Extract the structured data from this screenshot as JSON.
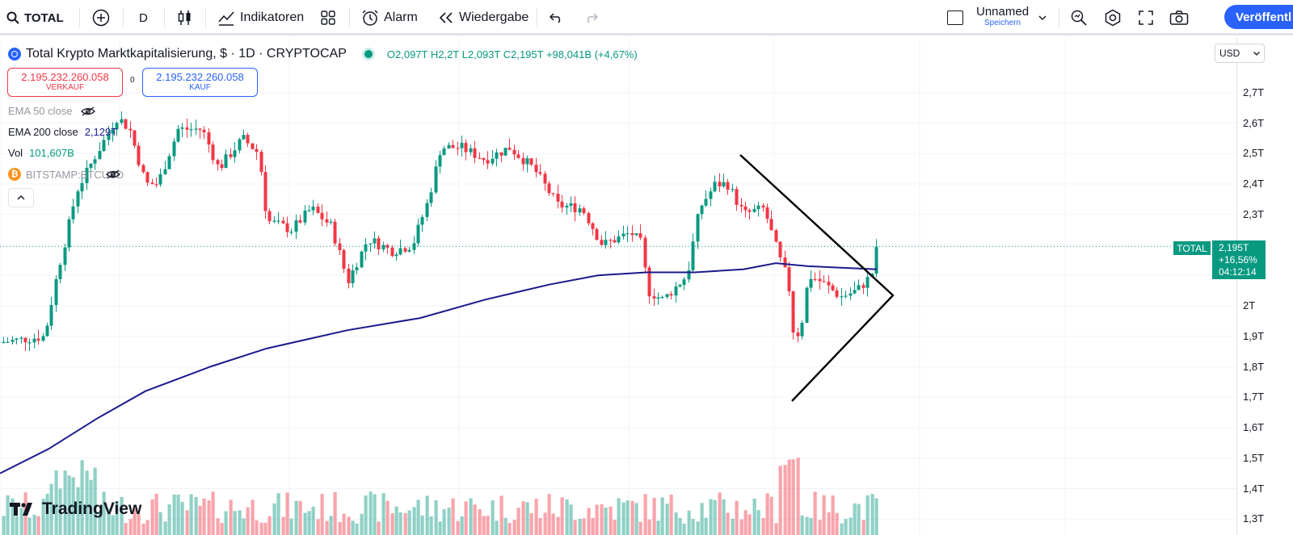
{
  "toolbar": {
    "symbol": "TOTAL",
    "interval": "D",
    "indicators_label": "Indikatoren",
    "alarm_label": "Alarm",
    "replay_label": "Wiedergabe",
    "layout_name": "Unnamed",
    "layout_sub": "Speichern",
    "publish_label": "Veröffentl"
  },
  "legend": {
    "title": "Total Krypto Marktkapitalisierung, $ · 1D · CRYPTOCAP",
    "ohlc": "O2,097T  H2,2T  L2,093T  C2,195T  +98,041B (+4,67%)",
    "zero": "0",
    "sell_price": "2.195.232.260.058",
    "sell_label": "VERKAUF",
    "buy_price": "2.195.232.260.058",
    "buy_label": "KAUF",
    "indicators": [
      {
        "label": "EMA 50 close",
        "value": ""
      },
      {
        "label": "EMA 200 close",
        "value": "2,129T"
      },
      {
        "label": "Vol",
        "value": "101,607B"
      },
      {
        "label": "BITSTAMP:BTCUSD",
        "value": ""
      }
    ]
  },
  "axis": {
    "currency": "USD",
    "ticks": [
      "2,7T",
      "2,6T",
      "2,5T",
      "2,4T",
      "2,3T",
      "2T",
      "1,9T",
      "1,8T",
      "1,7T",
      "1,6T",
      "1,5T",
      "1,4T",
      "1,3T"
    ]
  },
  "last_price": {
    "symbol": "TOTAL",
    "value": "2,195T",
    "change": "+16,56%",
    "countdown": "04:12:14"
  },
  "brand": "TradingView",
  "colors": {
    "up": "#089981",
    "down": "#f23645",
    "ema200": "#1a1a8c",
    "accent": "#2962ff"
  }
}
